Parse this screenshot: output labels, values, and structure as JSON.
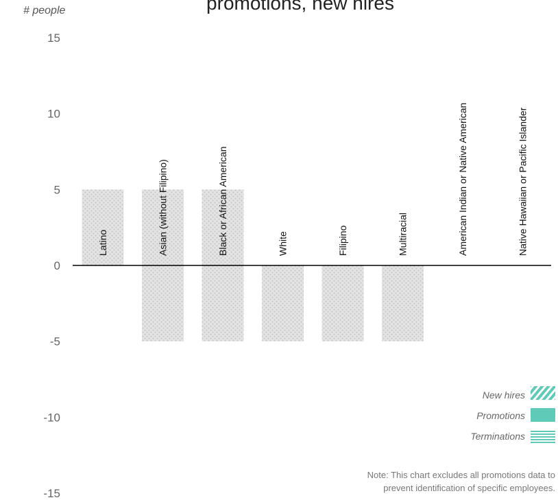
{
  "chart_data": {
    "type": "bar",
    "title": "promotions, new hires",
    "ylabel": "# people",
    "ylim": [
      -15,
      15
    ],
    "yticks": [
      15,
      10,
      5,
      0,
      -5,
      -10,
      -15
    ],
    "categories": [
      "Latino",
      "Asian (without Filipino)",
      "Black or African American",
      "White",
      "Filipino",
      "Multiracial",
      "American Indian or Native American",
      "Native Hawaiian or Pacific Islander"
    ],
    "series": [
      {
        "name": "New hires",
        "values": [
          5,
          5,
          5,
          0,
          0,
          0,
          0,
          0
        ]
      },
      {
        "name": "Terminations",
        "values": [
          0,
          -5,
          -5,
          -5,
          -5,
          -5,
          0,
          0
        ]
      }
    ],
    "legend": {
      "position": "bottom-right",
      "items": [
        {
          "label": "New hires",
          "style": "hatched"
        },
        {
          "label": "Promotions",
          "style": "solid"
        },
        {
          "label": "Terminations",
          "style": "striped"
        }
      ]
    },
    "note": [
      "Note: This chart excludes all promotions data to",
      "prevent identification of specific employees."
    ],
    "colors": {
      "legend_teal": "#5fcab8",
      "bar_gray": "#d9d9d9",
      "axis": "#000000"
    }
  }
}
